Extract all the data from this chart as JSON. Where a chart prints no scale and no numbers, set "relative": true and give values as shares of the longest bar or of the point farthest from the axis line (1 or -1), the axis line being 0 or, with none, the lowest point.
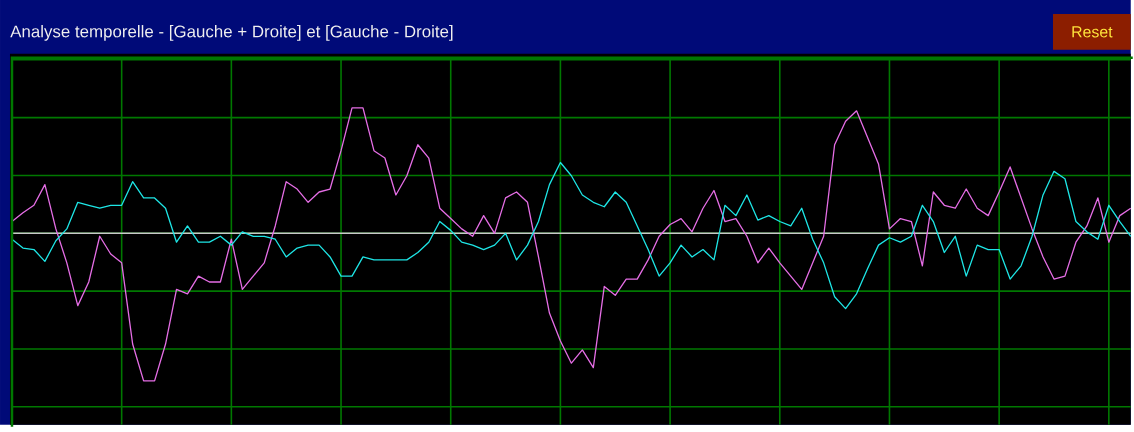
{
  "chart_data": {
    "type": "line",
    "title": "Analyse temporelle - [Gauche + Droite] et [Gauche - Droite]",
    "annotations": [
      "Reset"
    ],
    "relative": true,
    "grid": true,
    "categories": [
      null,
      null,
      null,
      null,
      null,
      null,
      null,
      null,
      null,
      null,
      null,
      null,
      null,
      null,
      null,
      null,
      null,
      null,
      null,
      null,
      null,
      null,
      null,
      null,
      null,
      null,
      null,
      null,
      null,
      null,
      null,
      null,
      null,
      null,
      null,
      null,
      null,
      null,
      null,
      null,
      null,
      null,
      null,
      null,
      null,
      null,
      null,
      null,
      null,
      null,
      null,
      null,
      null,
      null,
      null,
      null,
      null,
      null,
      null,
      null,
      null,
      null,
      null,
      null,
      null,
      null,
      null,
      null,
      null,
      null,
      null,
      null,
      null,
      null,
      null,
      null,
      null,
      null,
      null,
      null,
      null,
      null,
      null,
      null,
      null,
      null,
      null,
      null,
      null,
      null,
      null,
      null,
      null,
      null,
      null,
      null,
      null,
      null,
      null,
      null,
      null,
      null,
      null
    ],
    "series": [
      {
        "color": "#e66ee6",
        "values": [
          0.08,
          0.14,
          0.19,
          0.33,
          0.03,
          -0.2,
          -0.49,
          -0.33,
          -0.02,
          -0.14,
          -0.2,
          -0.75,
          -1,
          -1,
          -0.75,
          -0.38,
          -0.41,
          -0.29,
          -0.33,
          -0.33,
          -0.04,
          -0.38,
          -0.29,
          -0.2,
          0.05,
          0.35,
          0.3,
          0.21,
          0.28,
          0.3,
          0.56,
          0.85,
          0.85,
          0.56,
          0.51,
          0.26,
          0.39,
          0.6,
          0.51,
          0.17,
          0.1,
          0.03,
          -0.02,
          0.12,
          0,
          0.24,
          0.28,
          0.21,
          -0.16,
          -0.54,
          -0.73,
          -0.88,
          -0.79,
          -0.91,
          -0.36,
          -0.42,
          -0.31,
          -0.31,
          -0.18,
          -0.02,
          0.06,
          0.1,
          0.01,
          0.17,
          0.29,
          0.08,
          0.1,
          -0.02,
          -0.2,
          -0.1,
          -0.2,
          -0.29,
          -0.38,
          -0.2,
          -0.02,
          0.6,
          0.76,
          0.83,
          0.65,
          0.47,
          0.03,
          0.1,
          0.08,
          -0.22,
          0.28,
          0.19,
          0.17,
          0.3,
          0.17,
          0.12,
          0.28,
          0.45,
          0.24,
          0.03,
          -0.16,
          -0.31,
          -0.29,
          -0.06,
          0.05,
          0.24,
          -0.06,
          0.12,
          0.17
        ]
      },
      {
        "color": "#1ee6e6",
        "values": [
          -0.04,
          -0.1,
          -0.11,
          -0.19,
          -0.05,
          0.03,
          0.21,
          0.19,
          0.17,
          0.19,
          0.19,
          0.35,
          0.24,
          0.24,
          0.17,
          -0.06,
          0.05,
          -0.06,
          -0.06,
          -0.02,
          -0.08,
          0.01,
          -0.02,
          -0.02,
          -0.04,
          -0.16,
          -0.1,
          -0.08,
          -0.08,
          -0.16,
          -0.29,
          -0.29,
          -0.16,
          -0.18,
          -0.18,
          -0.18,
          -0.18,
          -0.13,
          -0.06,
          0.08,
          0.02,
          -0.06,
          -0.08,
          -0.11,
          -0.08,
          0,
          -0.18,
          -0.08,
          0.08,
          0.33,
          0.48,
          0.39,
          0.26,
          0.21,
          0.18,
          0.28,
          0.21,
          0.05,
          -0.11,
          -0.29,
          -0.2,
          -0.08,
          -0.16,
          -0.11,
          -0.18,
          0.19,
          0.12,
          0.26,
          0.09,
          0.12,
          0.08,
          0.05,
          0.17,
          -0.04,
          -0.2,
          -0.43,
          -0.51,
          -0.41,
          -0.24,
          -0.08,
          -0.03,
          -0.06,
          -0.02,
          0.19,
          0.08,
          -0.13,
          -0.02,
          -0.29,
          -0.08,
          -0.11,
          -0.11,
          -0.31,
          -0.22,
          -0.02,
          0.26,
          0.42,
          0.37,
          0.08,
          0.01,
          -0.04,
          0.19,
          0.08,
          -0.02
        ]
      }
    ]
  }
}
